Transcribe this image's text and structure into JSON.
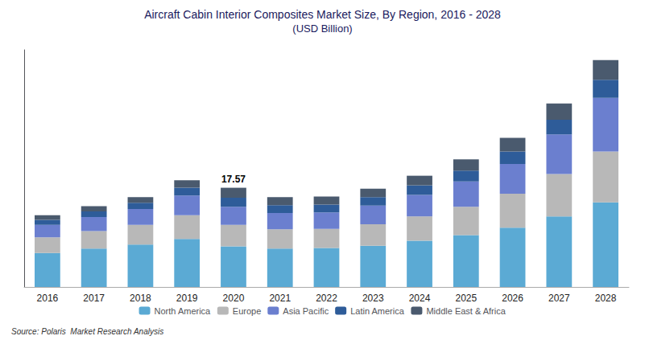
{
  "chart_data": {
    "type": "bar",
    "stacked": true,
    "title": "Aircraft Cabin Interior Composites Market Size, By Region, 2016 - 2028",
    "subtitle": "(USD Billion)",
    "source": "Source: Polaris  Market Research Analysis",
    "categories": [
      "2016",
      "2017",
      "2018",
      "2019",
      "2020",
      "2021",
      "2022",
      "2023",
      "2024",
      "2025",
      "2026",
      "2027",
      "2028"
    ],
    "series": [
      {
        "name": "North America",
        "color": "#5baad4",
        "values": [
          6.0,
          6.8,
          7.5,
          8.5,
          7.2,
          6.8,
          6.9,
          7.3,
          8.2,
          9.2,
          10.5,
          12.5,
          15.0
        ]
      },
      {
        "name": "Europe",
        "color": "#b8b8b8",
        "values": [
          2.8,
          3.1,
          3.5,
          4.2,
          3.8,
          3.4,
          3.4,
          3.8,
          4.3,
          5.0,
          6.0,
          7.5,
          9.0
        ]
      },
      {
        "name": "Asia Pacific",
        "color": "#6b7fcf",
        "values": [
          2.2,
          2.5,
          2.8,
          3.5,
          3.2,
          2.9,
          2.9,
          3.3,
          3.8,
          4.5,
          5.3,
          7.0,
          9.5
        ]
      },
      {
        "name": "Latin America",
        "color": "#2e5c99",
        "values": [
          0.9,
          1.0,
          1.1,
          1.4,
          1.6,
          1.4,
          1.4,
          1.5,
          1.7,
          1.9,
          2.2,
          2.6,
          3.2
        ]
      },
      {
        "name": "Middle East & Africa",
        "color": "#4a5a6e",
        "values": [
          0.8,
          0.9,
          1.0,
          1.3,
          1.77,
          1.4,
          1.4,
          1.5,
          1.7,
          2.0,
          2.4,
          2.9,
          3.5
        ]
      }
    ],
    "annotations": [
      {
        "text": "17.57",
        "category": "2020"
      }
    ],
    "ylim": [
      0,
      42
    ],
    "yticks": [],
    "tick_labels": "x",
    "grid": false,
    "legend": "bottom"
  }
}
